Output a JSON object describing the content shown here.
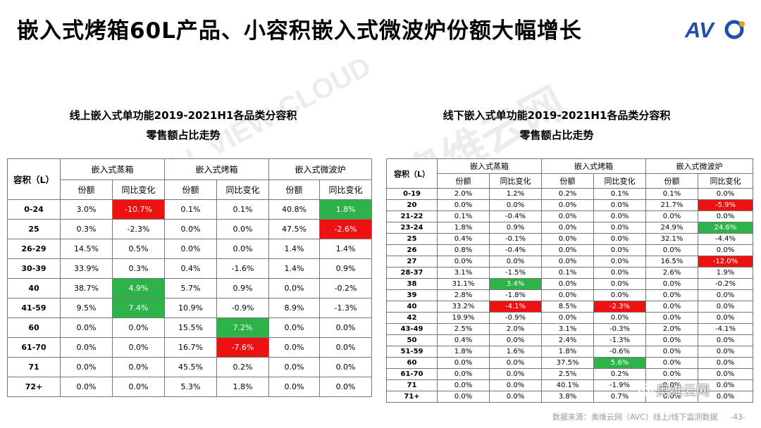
{
  "title": "嵌入式烤箱60L产品、小容积嵌入式微波炉份额大幅增长",
  "logo_text": "AVC",
  "watermark_text": "奥维云网",
  "watermark_sub": "ALL VIEW CLOUD",
  "left": {
    "subtitle_line1": "线上嵌入式单功能2019-2021H1各品类分容积",
    "subtitle_line2": "零售额占比走势",
    "capacity_label": "容积（L）",
    "groups": [
      "嵌入式蒸箱",
      "嵌入式烤箱",
      "嵌入式微波炉"
    ],
    "sub_headers": [
      "份额",
      "同比变化"
    ],
    "rows": [
      [
        "0-24",
        "3.0%",
        "-10.7%",
        "0.1%",
        "0.1%",
        "40.8%",
        "1.8%"
      ],
      [
        "25",
        "0.3%",
        "-2.3%",
        "0.0%",
        "0.0%",
        "47.5%",
        "-2.6%"
      ],
      [
        "26-29",
        "14.5%",
        "0.5%",
        "0.0%",
        "0.0%",
        "1.4%",
        "1.4%"
      ],
      [
        "30-39",
        "33.9%",
        "0.3%",
        "0.4%",
        "-1.6%",
        "1.4%",
        "0.9%"
      ],
      [
        "40",
        "38.7%",
        "4.9%",
        "5.7%",
        "0.9%",
        "0.0%",
        "-0.2%"
      ],
      [
        "41-59",
        "9.5%",
        "7.4%",
        "10.9%",
        "-0.9%",
        "8.9%",
        "-1.3%"
      ],
      [
        "60",
        "0.0%",
        "0.0%",
        "15.5%",
        "7.2%",
        "0.0%",
        "0.0%"
      ],
      [
        "61-70",
        "0.0%",
        "0.0%",
        "16.7%",
        "-7.6%",
        "0.0%",
        "0.0%"
      ],
      [
        "71",
        "0.0%",
        "0.0%",
        "45.5%",
        "0.2%",
        "0.0%",
        "0.0%"
      ],
      [
        "72+",
        "0.0%",
        "0.0%",
        "5.3%",
        "1.8%",
        "0.0%",
        "0.0%"
      ]
    ],
    "highlights": [
      [
        0,
        2,
        "neg"
      ],
      [
        0,
        6,
        "pos"
      ],
      [
        1,
        6,
        "neg"
      ],
      [
        4,
        2,
        "pos"
      ],
      [
        5,
        2,
        "pos"
      ],
      [
        6,
        4,
        "pos"
      ],
      [
        7,
        4,
        "neg"
      ]
    ]
  },
  "right": {
    "subtitle_line1": "线下嵌入式单功能2019-2021H1各品类分容积",
    "subtitle_line2": "零售额占比走势",
    "capacity_label": "容积（L）",
    "groups": [
      "嵌入式蒸箱",
      "嵌入式烤箱",
      "嵌入式微波炉"
    ],
    "sub_headers": [
      "份额",
      "同比变化"
    ],
    "rows": [
      [
        "0-19",
        "2.0%",
        "1.2%",
        "0.2%",
        "0.1%",
        "0.1%",
        "0.0%"
      ],
      [
        "20",
        "0.0%",
        "0.0%",
        "0.0%",
        "0.0%",
        "21.7%",
        "-5.9%"
      ],
      [
        "21-22",
        "0.1%",
        "-0.4%",
        "0.0%",
        "0.0%",
        "0.0%",
        "0.0%"
      ],
      [
        "23-24",
        "1.8%",
        "0.9%",
        "0.0%",
        "0.0%",
        "24.9%",
        "24.6%"
      ],
      [
        "25",
        "0.4%",
        "-0.1%",
        "0.0%",
        "0.0%",
        "32.1%",
        "-4.4%"
      ],
      [
        "26",
        "0.8%",
        "-0.4%",
        "0.0%",
        "0.0%",
        "0.0%",
        "0.0%"
      ],
      [
        "27",
        "0.0%",
        "0.0%",
        "0.0%",
        "0.0%",
        "16.5%",
        "-12.0%"
      ],
      [
        "28-37",
        "3.1%",
        "-1.5%",
        "0.1%",
        "0.0%",
        "2.6%",
        "1.9%"
      ],
      [
        "38",
        "31.1%",
        "3.4%",
        "0.0%",
        "0.0%",
        "0.0%",
        "-0.2%"
      ],
      [
        "39",
        "2.8%",
        "-1.8%",
        "0.0%",
        "0.0%",
        "0.0%",
        "0.0%"
      ],
      [
        "40",
        "33.2%",
        "-4.1%",
        "8.5%",
        "-2.3%",
        "0.0%",
        "0.0%"
      ],
      [
        "42",
        "19.9%",
        "-0.9%",
        "0.0%",
        "0.0%",
        "0.0%",
        "0.0%"
      ],
      [
        "43-49",
        "2.5%",
        "2.0%",
        "3.1%",
        "-0.3%",
        "2.0%",
        "-4.1%"
      ],
      [
        "50",
        "0.4%",
        "0.0%",
        "2.4%",
        "-1.3%",
        "0.0%",
        "0.0%"
      ],
      [
        "51-59",
        "1.8%",
        "1.6%",
        "1.8%",
        "-0.6%",
        "0.0%",
        "0.0%"
      ],
      [
        "60",
        "0.0%",
        "0.0%",
        "37.5%",
        "5.6%",
        "0.0%",
        "0.0%"
      ],
      [
        "61-70",
        "0.0%",
        "0.0%",
        "2.5%",
        "0.2%",
        "0.0%",
        "0.0%"
      ],
      [
        "71",
        "0.0%",
        "0.0%",
        "40.1%",
        "-1.9%",
        "0.0%",
        "0.0%"
      ],
      [
        "71+",
        "0.0%",
        "0.0%",
        "3.8%",
        "0.7%",
        "0.0%",
        "0.0%"
      ]
    ],
    "highlights": [
      [
        1,
        6,
        "neg"
      ],
      [
        3,
        6,
        "pos"
      ],
      [
        6,
        6,
        "neg"
      ],
      [
        8,
        2,
        "pos"
      ],
      [
        10,
        2,
        "neg"
      ],
      [
        10,
        4,
        "neg"
      ],
      [
        15,
        4,
        "pos"
      ]
    ]
  },
  "footer": "数据来源：奥维云网（AVC）线上/线下监测数据",
  "page_number": "-43-",
  "wechat_label": "奥维云网",
  "colors": {
    "positive": "#2db34a",
    "negative": "#ee1111",
    "logo_blue": "#1f4fa8",
    "logo_accent": "#f39c12"
  }
}
